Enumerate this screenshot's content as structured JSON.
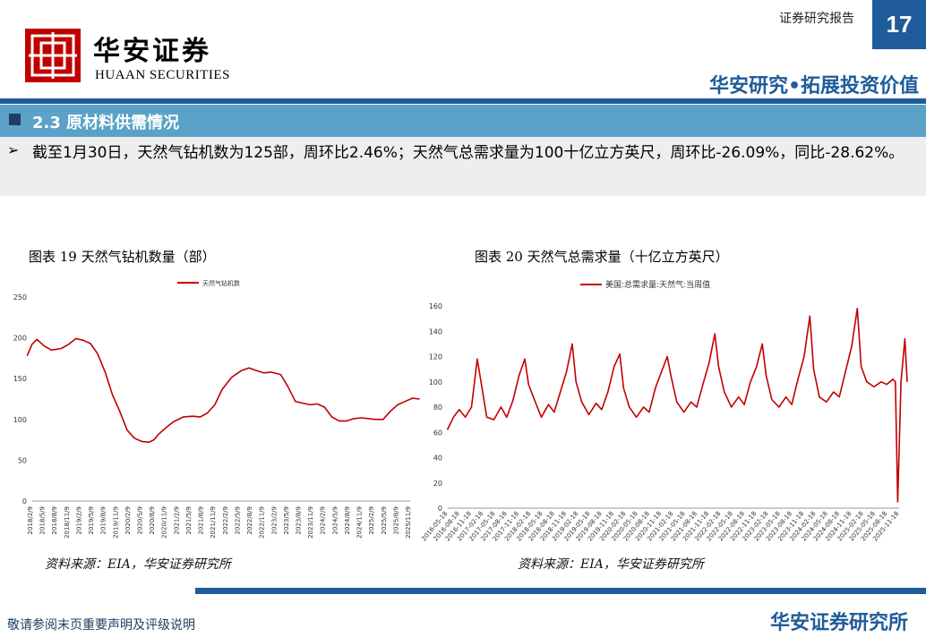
{
  "header": {
    "logo_cn": "华安证券",
    "logo_en": "HUAAN SECURITIES",
    "report_label": "证券研究报告",
    "page_number": "17",
    "slogan": "华安研究•拓展投资价值"
  },
  "section": {
    "title": "2.3 原材料供需情况",
    "summary": "截至1月30日，天然气钻机数为125部，周环比2.46%；天然气总需求量为100十亿立方英尺，周环比-26.09%，同比-28.62%。"
  },
  "colors": {
    "brand": "#1f5c99",
    "section_bar": "#5aa2c8",
    "series": "#c00000"
  },
  "footer": {
    "disclaimer": "敬请参阅末页重要声明及评级说明",
    "brand": "华安证券研究所"
  },
  "chart_data": [
    {
      "type": "line",
      "caption": "图表 19 天然气钻机数量（部）",
      "source": "资料来源：EIA，华安证券研究所",
      "legend": "天然气钻机数",
      "legend_position": "top-center",
      "grid": false,
      "ylim": [
        0,
        250
      ],
      "yticks": [
        0,
        50,
        100,
        150,
        200,
        250
      ],
      "xticks": [
        "2018/2/9",
        "2018/5/9",
        "2018/8/9",
        "2018/11/9",
        "2019/2/9",
        "2019/5/9",
        "2019/8/9",
        "2019/11/9",
        "2020/2/9",
        "2020/5/9",
        "2020/8/9",
        "2020/11/9",
        "2021/2/9",
        "2021/5/9",
        "2021/8/9",
        "2021/11/9",
        "2022/2/9",
        "2022/5/9",
        "2022/8/9",
        "2022/11/9",
        "2023/2/9",
        "2023/5/9",
        "2023/8/9",
        "2023/11/9",
        "2024/2/9",
        "2024/5/9",
        "2024/8/9",
        "2024/11/9",
        "2025/2/9",
        "2025/5/9",
        "2025/8/9",
        "2025/11/9"
      ],
      "series": [
        {
          "name": "天然气钻机数",
          "x": [
            2018.0,
            2018.1,
            2018.2,
            2018.35,
            2018.5,
            2018.7,
            2018.85,
            2019.0,
            2019.15,
            2019.3,
            2019.45,
            2019.6,
            2019.75,
            2019.9,
            2020.05,
            2020.2,
            2020.35,
            2020.5,
            2020.6,
            2020.7,
            2020.85,
            2021.0,
            2021.2,
            2021.4,
            2021.55,
            2021.7,
            2021.85,
            2022.0,
            2022.2,
            2022.4,
            2022.55,
            2022.7,
            2022.85,
            2023.0,
            2023.2,
            2023.35,
            2023.5,
            2023.65,
            2023.8,
            2023.95,
            2024.1,
            2024.25,
            2024.4,
            2024.55,
            2024.7,
            2024.85,
            2025.0,
            2025.15,
            2025.3,
            2025.45,
            2025.6,
            2025.75,
            2025.9,
            2026.05
          ],
          "y": [
            178,
            192,
            198,
            190,
            185,
            187,
            192,
            199,
            197,
            193,
            180,
            158,
            130,
            110,
            87,
            77,
            73,
            72,
            75,
            82,
            90,
            97,
            103,
            104,
            103,
            108,
            118,
            137,
            152,
            160,
            163,
            160,
            157,
            158,
            155,
            140,
            122,
            120,
            118,
            119,
            115,
            103,
            98,
            98,
            101,
            102,
            101,
            100,
            100,
            110,
            118,
            122,
            126,
            125
          ]
        }
      ]
    },
    {
      "type": "line",
      "caption": "图表 20 天然气总需求量（十亿立方英尺）",
      "source": "资料来源：EIA，华安证券研究所",
      "legend": "美国:总需求量:天然气:当周值",
      "legend_position": "top-center",
      "grid": false,
      "ylim": [
        0,
        160
      ],
      "yticks": [
        0,
        20,
        40,
        60,
        80,
        100,
        120,
        140,
        160
      ],
      "xticks": [
        "2016-05-18",
        "2016-08-18",
        "2016-11-18",
        "2017-02-18",
        "2017-05-18",
        "2017-08-18",
        "2017-11-18",
        "2018-02-18",
        "2018-05-18",
        "2018-08-18",
        "2018-11-18",
        "2019-02-18",
        "2019-05-18",
        "2019-08-18",
        "2019-11-18",
        "2020-02-18",
        "2020-05-18",
        "2020-08-18",
        "2020-11-18",
        "2021-02-18",
        "2021-05-18",
        "2021-08-18",
        "2021-11-18",
        "2022-02-18",
        "2022-05-18",
        "2022-08-18",
        "2022-11-18",
        "2023-02-18",
        "2023-05-18",
        "2023-08-18",
        "2023-11-18",
        "2024-02-18",
        "2024-05-18",
        "2024-08-18",
        "2024-11-18",
        "2025-02-18",
        "2025-05-18",
        "2025-08-18",
        "2025-11-18"
      ],
      "series": [
        {
          "name": "美国:总需求量:天然气:当周值",
          "x": [
            2016.37,
            2016.5,
            2016.62,
            2016.75,
            2016.88,
            2017.0,
            2017.08,
            2017.2,
            2017.35,
            2017.5,
            2017.62,
            2017.75,
            2017.88,
            2018.0,
            2018.08,
            2018.2,
            2018.35,
            2018.5,
            2018.62,
            2018.75,
            2018.88,
            2019.0,
            2019.08,
            2019.2,
            2019.35,
            2019.5,
            2019.62,
            2019.75,
            2019.88,
            2020.0,
            2020.08,
            2020.2,
            2020.35,
            2020.5,
            2020.62,
            2020.75,
            2020.88,
            2021.0,
            2021.08,
            2021.2,
            2021.35,
            2021.5,
            2021.62,
            2021.75,
            2021.88,
            2022.0,
            2022.08,
            2022.2,
            2022.35,
            2022.5,
            2022.62,
            2022.75,
            2022.88,
            2023.0,
            2023.08,
            2023.2,
            2023.35,
            2023.5,
            2023.62,
            2023.75,
            2023.88,
            2024.0,
            2024.08,
            2024.2,
            2024.35,
            2024.5,
            2024.62,
            2024.75,
            2024.88,
            2025.0,
            2025.08,
            2025.2,
            2025.35,
            2025.5,
            2025.62,
            2025.75,
            2025.8,
            2025.85,
            2025.92,
            2026.0,
            2026.05
          ],
          "y": [
            62,
            72,
            78,
            72,
            80,
            118,
            100,
            72,
            70,
            80,
            72,
            85,
            105,
            118,
            98,
            86,
            72,
            82,
            76,
            92,
            108,
            130,
            100,
            84,
            74,
            83,
            78,
            92,
            112,
            122,
            95,
            80,
            72,
            80,
            76,
            95,
            108,
            120,
            104,
            84,
            76,
            84,
            80,
            98,
            115,
            138,
            112,
            92,
            80,
            88,
            82,
            100,
            112,
            130,
            105,
            86,
            80,
            88,
            82,
            102,
            120,
            152,
            110,
            88,
            84,
            92,
            88,
            108,
            128,
            158,
            112,
            100,
            96,
            100,
            98,
            102,
            100,
            5,
            100,
            134,
            100
          ]
        }
      ]
    }
  ]
}
